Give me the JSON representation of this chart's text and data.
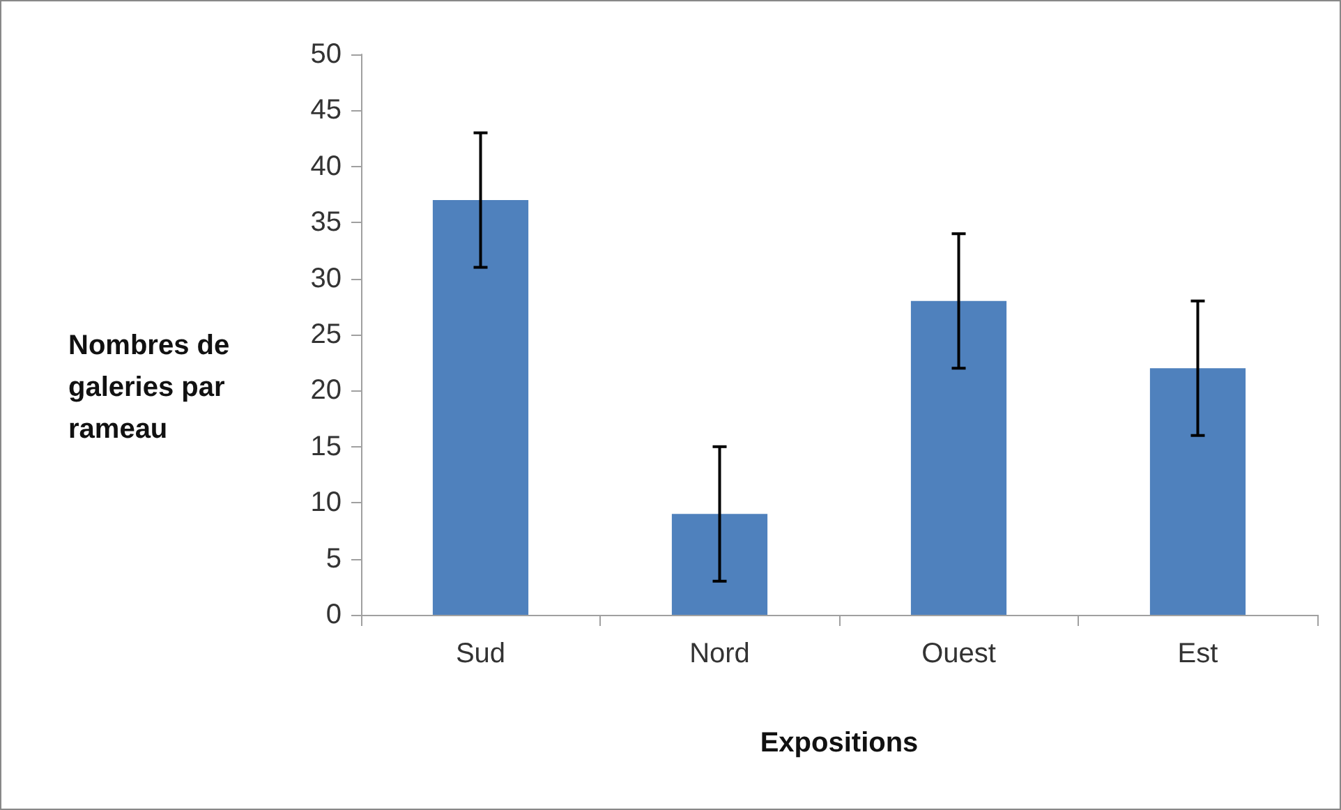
{
  "chart_data": {
    "type": "bar",
    "xlabel": "Expositions",
    "ylabel": "Nombres de galeries par rameau",
    "categories": [
      "Sud",
      "Nord",
      "Ouest",
      "Est"
    ],
    "values": [
      37,
      9,
      28,
      22
    ],
    "errors": [
      6,
      6,
      6,
      6
    ],
    "color": "#4f81bd",
    "ylim": [
      0,
      50
    ],
    "yticks": [
      0,
      5,
      10,
      15,
      20,
      25,
      30,
      35,
      40,
      45,
      50
    ],
    "grid": false
  }
}
